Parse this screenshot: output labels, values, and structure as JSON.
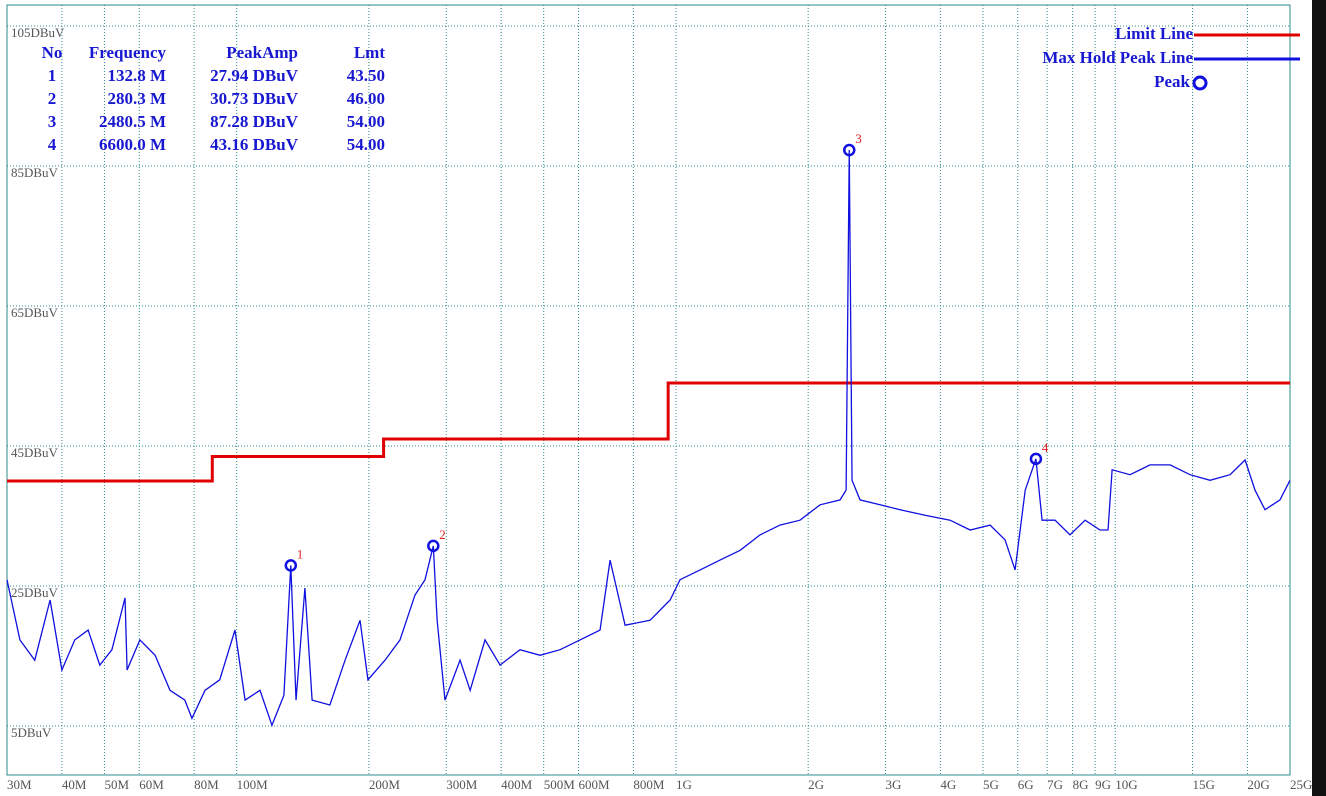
{
  "chart_data": {
    "type": "line",
    "xscale": "log",
    "xlim": [
      30,
      25000
    ],
    "ylim": [
      -2,
      108
    ],
    "grid": true,
    "legend": "top-right",
    "xticks": [
      {
        "value": 30,
        "label": "30M"
      },
      {
        "value": 40,
        "label": "40M"
      },
      {
        "value": 50,
        "label": "50M"
      },
      {
        "value": 60,
        "label": "60M"
      },
      {
        "value": 80,
        "label": "80M"
      },
      {
        "value": 100,
        "label": "100M"
      },
      {
        "value": 200,
        "label": "200M"
      },
      {
        "value": 300,
        "label": "300M"
      },
      {
        "value": 400,
        "label": "400M"
      },
      {
        "value": 500,
        "label": "500M"
      },
      {
        "value": 600,
        "label": "600M"
      },
      {
        "value": 800,
        "label": "800M"
      },
      {
        "value": 1000,
        "label": "1G"
      },
      {
        "value": 2000,
        "label": "2G"
      },
      {
        "value": 3000,
        "label": "3G"
      },
      {
        "value": 4000,
        "label": "4G"
      },
      {
        "value": 5000,
        "label": "5G"
      },
      {
        "value": 6000,
        "label": "6G"
      },
      {
        "value": 7000,
        "label": "7G"
      },
      {
        "value": 8000,
        "label": "8G"
      },
      {
        "value": 9000,
        "label": "9G"
      },
      {
        "value": 10000,
        "label": "10G"
      },
      {
        "value": 15000,
        "label": "15G"
      },
      {
        "value": 20000,
        "label": "20G"
      },
      {
        "value": 25000,
        "label": "25G"
      }
    ],
    "yticks": [
      {
        "value": 105,
        "label": "105DBuV"
      },
      {
        "value": 85,
        "label": "85DBuV"
      },
      {
        "value": 65,
        "label": "65DBuV"
      },
      {
        "value": 45,
        "label": "45DBuV"
      },
      {
        "value": 25,
        "label": "25DBuV"
      },
      {
        "value": 5,
        "label": "5DBuV"
      }
    ],
    "series": [
      {
        "name": "Limit Line",
        "color": "#e00000",
        "x": [
          30,
          88,
          88,
          216,
          216,
          960,
          960,
          25000
        ],
        "values": [
          40,
          40,
          43.5,
          43.5,
          46,
          46,
          54,
          54
        ]
      },
      {
        "name": "Max Hold Peak Line",
        "color": "#1010e0",
        "x": [
          30,
          32.1,
          34.7,
          37.6,
          40,
          42.8,
          45.9,
          48.8,
          52,
          55.7,
          56.3,
          60.2,
          65.2,
          70.5,
          76.2,
          79.1,
          84.7,
          91.5,
          99.1,
          104.5,
          113,
          120.3,
          128.1,
          132.8,
          136.5,
          143,
          148.5,
          163,
          176.5,
          190.9,
          199,
          217.6,
          235.4,
          254.6,
          268.4,
          280.3,
          286,
          298,
          322.5,
          340,
          367.6,
          397.8,
          441.6,
          490.6,
          544.8,
          604.8,
          671.8,
          708,
          766,
          873,
          970,
          1021.6,
          1135,
          1260,
          1400,
          1554,
          1725,
          1916,
          2129,
          2364,
          2440,
          2480.5,
          2517,
          2625,
          2916,
          3238,
          3690,
          4209,
          4674,
          5190,
          5613,
          5917,
          6240,
          6600,
          6816,
          7296,
          7891,
          8542,
          9235,
          9631,
          9840,
          10812,
          12000,
          13335,
          14806,
          16441,
          18258,
          19755,
          20808,
          21930,
          23720,
          25000
        ],
        "values": [
          25.9,
          17.3,
          14.4,
          23.0,
          13.0,
          17.3,
          18.7,
          13.7,
          15.9,
          23.3,
          13.0,
          17.3,
          15.1,
          10.1,
          8.7,
          6.1,
          10.1,
          11.6,
          18.7,
          8.7,
          10.1,
          5.1,
          9.4,
          27.94,
          8.7,
          24.7,
          8.7,
          8.0,
          14.4,
          20.1,
          11.6,
          14.4,
          17.3,
          23.7,
          25.9,
          30.73,
          20.1,
          8.7,
          14.4,
          10.1,
          17.3,
          13.7,
          15.9,
          15.1,
          15.9,
          17.3,
          18.7,
          28.7,
          19.4,
          20.1,
          23.0,
          25.9,
          27.3,
          28.7,
          30.1,
          32.3,
          33.7,
          34.4,
          36.6,
          37.3,
          38.7,
          87.28,
          40.1,
          37.3,
          36.6,
          35.9,
          35.1,
          34.4,
          33.0,
          33.7,
          31.6,
          27.3,
          38.7,
          43.16,
          34.4,
          34.4,
          32.3,
          34.4,
          33.0,
          33.0,
          41.6,
          40.9,
          42.3,
          42.3,
          40.9,
          40.1,
          40.9,
          43.0,
          38.7,
          35.9,
          37.3,
          40.1
        ]
      },
      {
        "name": "Peak",
        "color": "#1010e0",
        "marker": "circle",
        "x": [
          132.8,
          280.3,
          2480.5,
          6600
        ],
        "values": [
          27.94,
          30.73,
          87.28,
          43.16
        ],
        "labels": [
          "1",
          "2",
          "3",
          "4"
        ],
        "label_color": "#e02020"
      }
    ],
    "table": {
      "columns": [
        "No",
        "Frequency",
        "PeakAmp",
        "Lmt"
      ],
      "rows": [
        [
          "1",
          "132.8 M",
          "27.94 DBuV",
          "43.50"
        ],
        [
          "2",
          "280.3 M",
          "30.73 DBuV",
          "46.00"
        ],
        [
          "3",
          "2480.5 M",
          "87.28 DBuV",
          "54.00"
        ],
        [
          "4",
          "6600.0 M",
          "43.16 DBuV",
          "54.00"
        ]
      ]
    }
  }
}
